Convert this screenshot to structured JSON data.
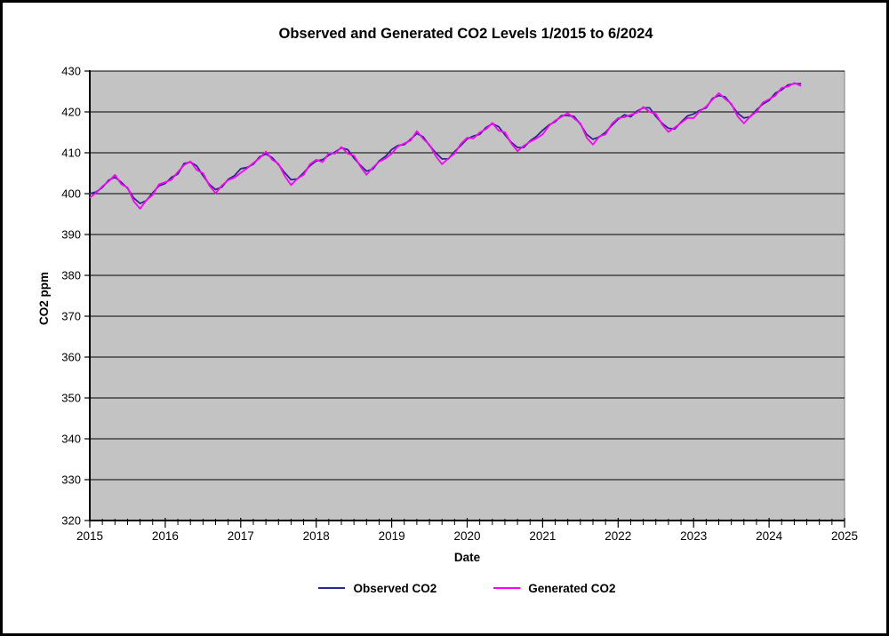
{
  "window": {
    "background": "#FFFFFF",
    "border_color": "#000000"
  },
  "chart": {
    "title": "Observed and Generated CO2 Levels 1/2015 to 6/2024",
    "x_axis_label": "Date",
    "y_axis_label": "CO2 ppm"
  },
  "colors": {
    "plot_background": "#C3C3C3",
    "gridline": "#000000",
    "axis": "#000000",
    "tick_label": "#000000",
    "plot_border": "#808080",
    "observed_line": "#29298C",
    "generated_line": "#FF00FF"
  },
  "chart_data": {
    "type": "line",
    "title": "Observed and Generated CO2 Levels 1/2015 to 6/2024",
    "xlabel": "Date",
    "ylabel": "CO2 ppm",
    "xlim": [
      2015,
      2025
    ],
    "ylim": [
      320,
      430
    ],
    "y_tick_step": 10,
    "x_tick_labels": [
      "2015",
      "2016",
      "2017",
      "2018",
      "2019",
      "2020",
      "2021",
      "2022",
      "2023",
      "2024",
      "2025"
    ],
    "y_tick_labels": [
      "320",
      "330",
      "340",
      "350",
      "360",
      "370",
      "380",
      "390",
      "400",
      "410",
      "420",
      "430"
    ],
    "x_minor_ticks_per_year": 6,
    "grid": "horizontal",
    "legend_position": "bottom",
    "months": [
      "2015-01",
      "2015-02",
      "2015-03",
      "2015-04",
      "2015-05",
      "2015-06",
      "2015-07",
      "2015-08",
      "2015-09",
      "2015-10",
      "2015-11",
      "2015-12",
      "2016-01",
      "2016-02",
      "2016-03",
      "2016-04",
      "2016-05",
      "2016-06",
      "2016-07",
      "2016-08",
      "2016-09",
      "2016-10",
      "2016-11",
      "2016-12",
      "2017-01",
      "2017-02",
      "2017-03",
      "2017-04",
      "2017-05",
      "2017-06",
      "2017-07",
      "2017-08",
      "2017-09",
      "2017-10",
      "2017-11",
      "2017-12",
      "2018-01",
      "2018-02",
      "2018-03",
      "2018-04",
      "2018-05",
      "2018-06",
      "2018-07",
      "2018-08",
      "2018-09",
      "2018-10",
      "2018-11",
      "2018-12",
      "2019-01",
      "2019-02",
      "2019-03",
      "2019-04",
      "2019-05",
      "2019-06",
      "2019-07",
      "2019-08",
      "2019-09",
      "2019-10",
      "2019-11",
      "2019-12",
      "2020-01",
      "2020-02",
      "2020-03",
      "2020-04",
      "2020-05",
      "2020-06",
      "2020-07",
      "2020-08",
      "2020-09",
      "2020-10",
      "2020-11",
      "2020-12",
      "2021-01",
      "2021-02",
      "2021-03",
      "2021-04",
      "2021-05",
      "2021-06",
      "2021-07",
      "2021-08",
      "2021-09",
      "2021-10",
      "2021-11",
      "2021-12",
      "2022-01",
      "2022-02",
      "2022-03",
      "2022-04",
      "2022-05",
      "2022-06",
      "2022-07",
      "2022-08",
      "2022-09",
      "2022-10",
      "2022-11",
      "2022-12",
      "2023-01",
      "2023-02",
      "2023-03",
      "2023-04",
      "2023-05",
      "2023-06",
      "2023-07",
      "2023-08",
      "2023-09",
      "2023-10",
      "2023-11",
      "2023-12",
      "2024-01",
      "2024-02",
      "2024-03",
      "2024-04",
      "2024-05",
      "2024-06"
    ],
    "series": [
      {
        "name": "Observed CO2",
        "color": "#29298C",
        "values": [
          400.0,
          400.4,
          401.5,
          403.3,
          404.0,
          402.8,
          401.3,
          398.9,
          397.6,
          398.3,
          400.2,
          401.9,
          402.5,
          404.0,
          404.8,
          407.4,
          407.7,
          406.8,
          404.4,
          402.3,
          401.0,
          401.6,
          403.5,
          404.4,
          406.1,
          406.4,
          407.2,
          409.0,
          409.7,
          408.8,
          407.1,
          405.1,
          403.4,
          403.6,
          405.1,
          406.8,
          408.0,
          408.3,
          409.4,
          410.2,
          411.2,
          410.8,
          408.7,
          407.0,
          405.5,
          406.0,
          408.0,
          409.1,
          410.8,
          411.8,
          412.0,
          413.3,
          414.7,
          413.9,
          411.8,
          410.0,
          408.5,
          408.5,
          410.3,
          411.8,
          413.4,
          414.1,
          414.5,
          416.2,
          417.1,
          416.4,
          414.4,
          412.6,
          411.3,
          411.3,
          412.9,
          414.0,
          415.5,
          416.8,
          417.6,
          419.1,
          419.1,
          418.9,
          417.0,
          414.5,
          413.3,
          413.9,
          415.0,
          416.7,
          418.2,
          419.3,
          418.8,
          420.2,
          421.0,
          421.0,
          418.9,
          417.2,
          416.0,
          415.8,
          417.5,
          419.0,
          419.5,
          420.4,
          421.0,
          423.3,
          424.0,
          423.7,
          421.8,
          419.7,
          418.5,
          418.8,
          420.5,
          421.9,
          422.8,
          424.6,
          425.4,
          426.6,
          426.9,
          426.9
        ]
      },
      {
        "name": "Generated CO2",
        "color": "#FF00FF",
        "values": [
          399.0,
          400.2,
          401.8,
          403.0,
          404.6,
          402.3,
          401.5,
          398.1,
          396.3,
          398.4,
          399.7,
          402.3,
          402.8,
          403.4,
          405.3,
          407.0,
          407.9,
          405.8,
          405.0,
          402.0,
          400.1,
          402.0,
          403.3,
          403.9,
          405.1,
          406.2,
          407.5,
          408.7,
          410.3,
          408.3,
          407.3,
          404.3,
          402.1,
          403.7,
          404.6,
          407.2,
          408.3,
          407.7,
          409.9,
          409.8,
          411.4,
          409.8,
          409.3,
          406.7,
          404.6,
          406.4,
          407.8,
          408.6,
          409.8,
          411.6,
          412.3,
          413.0,
          415.3,
          413.4,
          412.0,
          409.2,
          407.2,
          408.6,
          409.8,
          412.2,
          413.7,
          413.5,
          415.0,
          415.8,
          417.3,
          415.4,
          415.0,
          412.3,
          410.4,
          411.7,
          412.7,
          413.5,
          414.5,
          416.6,
          417.9,
          418.8,
          419.7,
          418.4,
          417.2,
          413.7,
          412.0,
          414.0,
          414.5,
          417.1,
          418.5,
          418.7,
          419.3,
          419.8,
          421.2,
          420.0,
          419.5,
          416.9,
          415.1,
          416.2,
          417.3,
          418.5,
          418.5,
          420.2,
          421.3,
          423.0,
          424.6,
          423.2,
          422.0,
          418.9,
          417.2,
          418.9,
          420.0,
          422.3,
          423.1,
          424.0,
          425.9,
          426.2,
          427.1,
          426.4
        ]
      }
    ]
  },
  "legend": {
    "items": [
      {
        "label": "Observed CO2",
        "color": "#29298C"
      },
      {
        "label": "Generated CO2",
        "color": "#FF00FF"
      }
    ]
  }
}
